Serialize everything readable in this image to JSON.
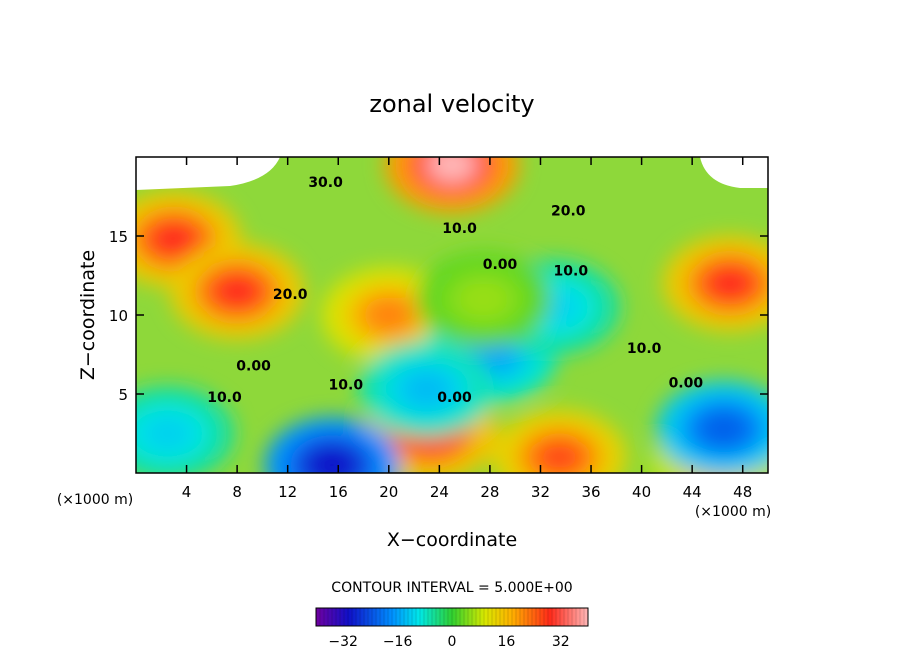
{
  "chart_data": {
    "type": "heatmap",
    "title": "zonal velocity",
    "xlabel": "X−coordinate",
    "ylabel": "Z−coordinate",
    "xlim": [
      0,
      50
    ],
    "ylim": [
      0,
      20
    ],
    "x_ticks": [
      4,
      8,
      12,
      16,
      20,
      24,
      28,
      32,
      36,
      40,
      44,
      48
    ],
    "y_ticks": [
      5,
      10,
      15
    ],
    "x_unit_left": "(×1000 m)",
    "x_unit_right": "(×1000 m)",
    "contour_interval_text": "CONTOUR INTERVAL = 5.000E+00",
    "contour_labels": [
      {
        "text": "30.0",
        "x": 15,
        "y": 18.1
      },
      {
        "text": "20.0",
        "x": 34.2,
        "y": 16.3
      },
      {
        "text": "10.0",
        "x": 25.6,
        "y": 15.2
      },
      {
        "text": "0.00",
        "x": 28.8,
        "y": 12.9
      },
      {
        "text": "10.0",
        "x": 34.4,
        "y": 12.5
      },
      {
        "text": "20.0",
        "x": 12.2,
        "y": 11.0
      },
      {
        "text": "10.0",
        "x": 40.2,
        "y": 7.6
      },
      {
        "text": "0.00",
        "x": 9.3,
        "y": 6.5
      },
      {
        "text": "10.0",
        "x": 16.6,
        "y": 5.3
      },
      {
        "text": "0.00",
        "x": 43.5,
        "y": 5.4
      },
      {
        "text": "0.00",
        "x": 25.2,
        "y": 4.5
      },
      {
        "text": "10.0",
        "x": 7.0,
        "y": 4.5
      }
    ],
    "field_peaks": [
      {
        "x": 3,
        "y": 14.8,
        "value": 28
      },
      {
        "x": 8,
        "y": 11.5,
        "value": 28
      },
      {
        "x": 20,
        "y": 10,
        "value": 20
      },
      {
        "x": 47,
        "y": 12,
        "value": 28
      },
      {
        "x": 23.3,
        "y": 2.5,
        "value": 30
      },
      {
        "x": 33.5,
        "y": 1.0,
        "value": 25
      },
      {
        "x": 46,
        "y": 0.5,
        "value": 15
      },
      {
        "x": 15.5,
        "y": 0.5,
        "value": -32
      },
      {
        "x": 28,
        "y": 7.5,
        "value": -14
      },
      {
        "x": 46.5,
        "y": 2.8,
        "value": -22
      },
      {
        "x": 2.5,
        "y": 2.5,
        "value": -10
      },
      {
        "x": 33,
        "y": 10.5,
        "value": -10
      },
      {
        "x": 23,
        "y": 5.3,
        "value": -12
      },
      {
        "x": 27.5,
        "y": 11,
        "value": 5
      },
      {
        "x": 25,
        "y": 19.5,
        "value": 40
      }
    ],
    "colorbar": {
      "range": [
        -40,
        40
      ],
      "ticks": [
        -32,
        -16,
        0,
        16,
        32
      ],
      "tick_labels": [
        "−32",
        "−16",
        "0",
        "16",
        "32"
      ]
    }
  }
}
